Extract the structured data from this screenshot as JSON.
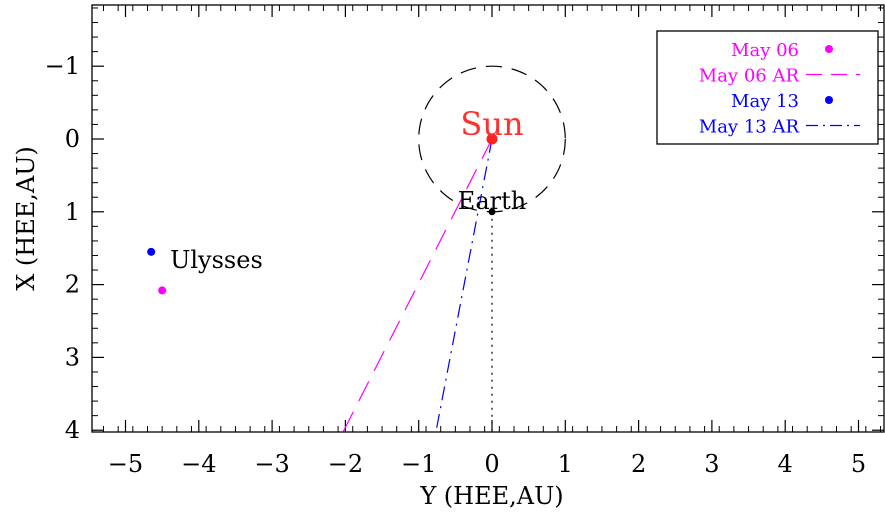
{
  "chart_data": {
    "type": "scatter",
    "title": "",
    "xlabel": "Y (HEE,AU)",
    "ylabel": "X (HEE,AU)",
    "xlim": [
      -5.5,
      5.4
    ],
    "ylim": [
      4.1,
      -1.8
    ],
    "y_axis_inverted": true,
    "grid": false,
    "x_ticks": [
      -5,
      -4,
      -3,
      -2,
      -1,
      0,
      1,
      2,
      3,
      4,
      5
    ],
    "x_tick_labels": [
      "−5",
      "−4",
      "−3",
      "−2",
      "−1",
      "0",
      "1",
      "2",
      "3",
      "4",
      "5"
    ],
    "y_ticks": [
      -1,
      0,
      1,
      2,
      3,
      4
    ],
    "y_tick_labels": [
      "−1",
      "0",
      "1",
      "2",
      "3",
      "4"
    ],
    "legend_position": "top-right",
    "legend": [
      {
        "label": "May 06",
        "color": "#ff00ff",
        "marker": "dot"
      },
      {
        "label": "May 06 AR",
        "color": "#ff00ff",
        "marker": "dashed-line"
      },
      {
        "label": "May 13",
        "color": "#0000ff",
        "marker": "dot"
      },
      {
        "label": "May 13 AR",
        "color": "#0000ff",
        "marker": "dash-dot-line"
      }
    ],
    "bodies": [
      {
        "label": "Sun",
        "x": 0,
        "y": 0,
        "color": "#ff2020",
        "label_color": "#ff3030"
      },
      {
        "label": "Earth",
        "x": 0,
        "y": 1,
        "color": "#000000",
        "label_color": "#000000"
      },
      {
        "label": "Ulysses",
        "x": -4.65,
        "y": 1.55,
        "color": "#0000ff",
        "label_color": "#000000"
      },
      {
        "label": "",
        "x": -4.5,
        "y": 2.08,
        "color": "#ff00ff",
        "label_color": "#ff00ff"
      }
    ],
    "circle": {
      "center": [
        0,
        0
      ],
      "radius": 1,
      "style": "dashed",
      "color": "#000000"
    },
    "lines": [
      {
        "name": "May 06 AR",
        "color": "#ff00ff",
        "style": "dashed",
        "points": [
          [
            0,
            0
          ],
          [
            -2.07,
            4.1
          ]
        ]
      },
      {
        "name": "May 13 AR",
        "color": "#0000ff",
        "style": "dash-dot",
        "points": [
          [
            0,
            0
          ],
          [
            -0.78,
            4.1
          ]
        ]
      },
      {
        "name": "Sun-Earth line",
        "color": "#000000",
        "style": "dotted",
        "points": [
          [
            0,
            1
          ],
          [
            0,
            4.1
          ]
        ]
      }
    ]
  }
}
